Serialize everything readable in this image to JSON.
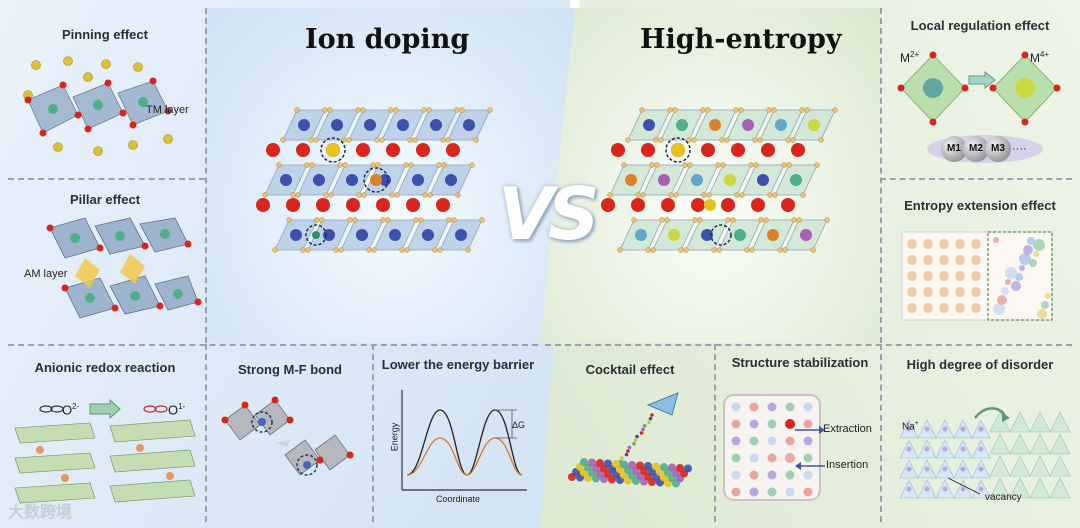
{
  "left": {
    "pinning": {
      "title": "Pinning effect",
      "label": "TM layer"
    },
    "pillar": {
      "title": "Pillar effect",
      "label": "AM layer"
    },
    "anionic": {
      "title": "Anionic redox reaction",
      "o2": "O",
      "o2_sup": "2-",
      "o1": "O",
      "o1_sup": "1-"
    },
    "mf": {
      "title": "Strong M-F bond"
    },
    "energy": {
      "title": "Lower the energy barrier",
      "ylabel": "Energy",
      "xlabel": "Coordinate",
      "dg": "ΔG"
    },
    "center_title": "Ion doping"
  },
  "vs_text": "VS",
  "right": {
    "center_title": "High-entropy",
    "local": {
      "title": "Local regulation effect",
      "m2": "M",
      "m2_sup": "2+",
      "m4": "M",
      "m4_sup": "4+",
      "m1": "M1",
      "m2b": "M2",
      "m3": "M3",
      "dots": "····"
    },
    "entropy_ext": {
      "title": "Entropy extension effect"
    },
    "cocktail": {
      "title": "Cocktail effect"
    },
    "structure": {
      "title": "Structure stabilization",
      "extraction": "Extraction",
      "insertion": "Insertion"
    },
    "disorder": {
      "title": "High degree of disorder",
      "na": "Na",
      "na_sup": "+",
      "vacancy": "vacancy"
    }
  },
  "watermark": "大数跨境",
  "colors": {
    "oxygen_red": "#d9251c",
    "sodium_yellow": "#e6c21f",
    "tm_blue": "#3f4fae",
    "octa_blue": "#b8cde6",
    "octa_green": "#a9d3a0",
    "dopant_orange": "#d9822b",
    "dopant_teal": "#2f8f6b"
  }
}
